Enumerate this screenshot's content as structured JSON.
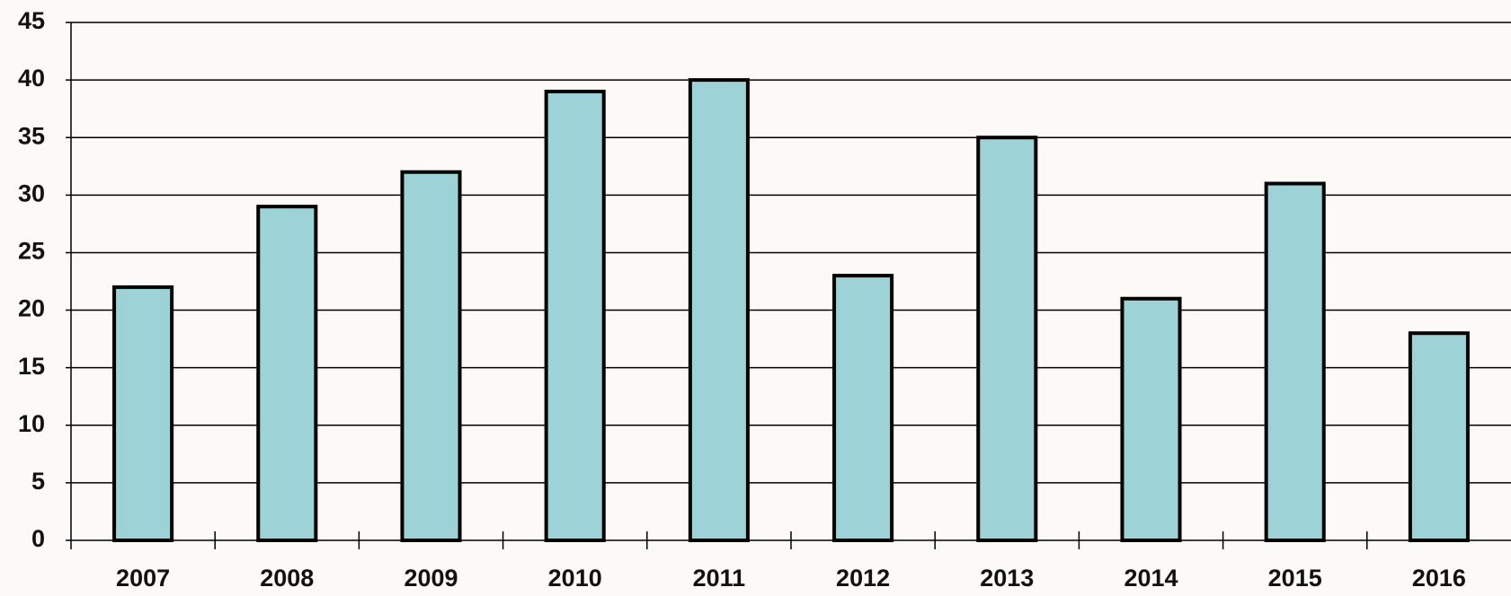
{
  "chart_data": {
    "type": "bar",
    "categories": [
      "2007",
      "2008",
      "2009",
      "2010",
      "2011",
      "2012",
      "2013",
      "2014",
      "2015",
      "2016"
    ],
    "values": [
      22,
      29,
      32,
      39,
      40,
      23,
      35,
      21,
      31,
      18
    ],
    "color": "#9dd3d6",
    "ylim": [
      0,
      45
    ],
    "yticks": [
      0,
      5,
      10,
      15,
      20,
      25,
      30,
      35,
      40,
      45
    ],
    "grid": true
  }
}
